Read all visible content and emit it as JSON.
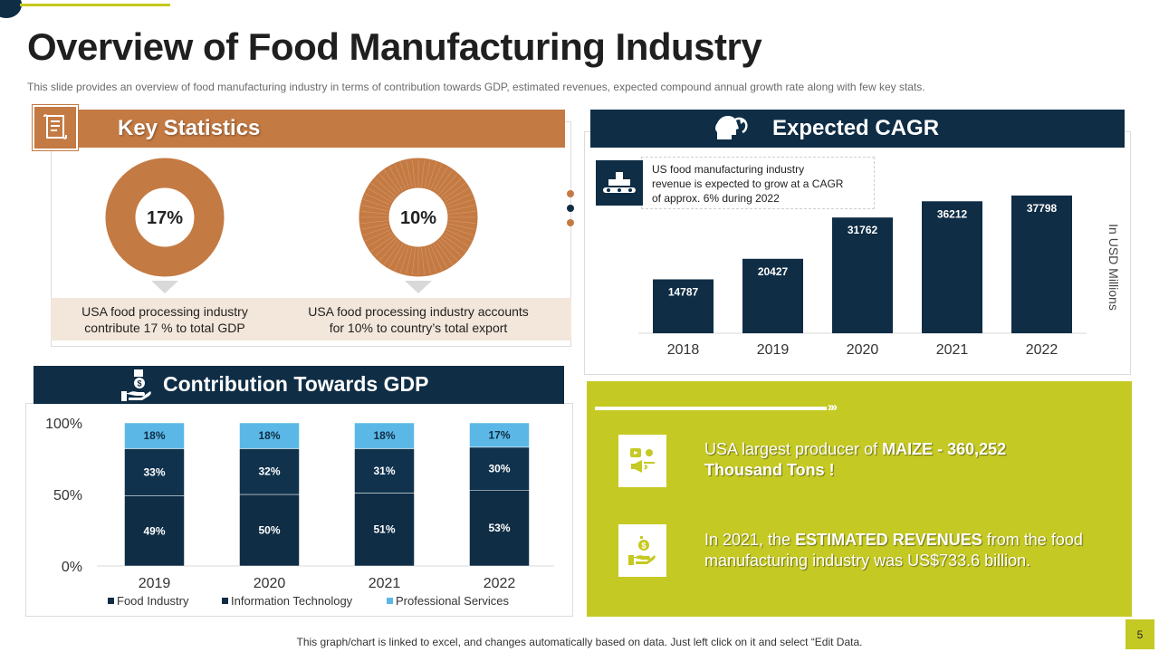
{
  "page": {
    "title": "Overview of Food Manufacturing Industry",
    "subtitle": "This slide provides  an overview  of food manufacturing  industry in terms of contribution towards GDP, estimated revenues,  expected compound  annual  growth  rate along with few key stats.",
    "footer_note": "This graph/chart is linked to excel, and changes automatically based on data. Just left click on it and select “Edit Data.",
    "page_number": "5"
  },
  "colors": {
    "navy": "#0f2d45",
    "copper": "#c47a43",
    "lime": "#c5c923",
    "sky": "#5bb8e6",
    "peach": "#f3e6da"
  },
  "key_stats": {
    "title": "Key Statistics",
    "icon": "document-icon",
    "stats": [
      {
        "value": "17%",
        "percent": 17,
        "description_line1": "USA food processing industry",
        "description_line2": "contribute 17 % to total GDP"
      },
      {
        "value": "10%",
        "percent": 10,
        "description_line1": "USA food processing industry accounts",
        "description_line2": "for 10% to country’s total export"
      }
    ]
  },
  "cagr": {
    "title": "Expected CAGR",
    "header_icon": "head-refresh-icon",
    "note_icon": "conveyor-icon",
    "note_line1": "US food manufacturing industry",
    "note_line2": "revenue  is expected to grow at a CAGR",
    "note_line3": "of approx. 6% during 2022",
    "axis_label": "In USD Millions"
  },
  "gdp": {
    "title": "Contribution Towards GDP",
    "header_icon": "money-hand-icon"
  },
  "facts": [
    {
      "icon": "media-megaphone-icon",
      "pre": "USA largest producer of ",
      "bold": "MAIZE - 360,252",
      "line2": "Thousand Tons !"
    },
    {
      "icon": "money-hand-icon",
      "pre": "In 2021, the ",
      "bold": "ESTIMATED REVENUES",
      "post": " from the food",
      "line2": "manufacturing industry was US$733.6 billion."
    }
  ],
  "chart_data": [
    {
      "type": "bar",
      "title": "Expected CAGR",
      "categories": [
        "2018",
        "2019",
        "2020",
        "2021",
        "2022"
      ],
      "values": [
        14787,
        20427,
        31762,
        36212,
        37798
      ],
      "ylabel": "In USD Millions",
      "ylim": [
        0,
        41000
      ],
      "grid": false,
      "data_labels": [
        "14787",
        "20427",
        "31762",
        "36212",
        "37798"
      ]
    },
    {
      "type": "bar",
      "stacked": true,
      "title": "Contribution Towards GDP",
      "categories": [
        "2019",
        "2020",
        "2021",
        "2022"
      ],
      "series": [
        {
          "name": "Food Industry",
          "values": [
            49,
            50,
            51,
            53
          ],
          "labels": [
            "49%",
            "50%",
            "51%",
            "53%"
          ],
          "color": "#0f2d45"
        },
        {
          "name": "Information Technology",
          "values": [
            33,
            32,
            31,
            30
          ],
          "labels": [
            "33%",
            "32%",
            "31%",
            "30%"
          ],
          "color": "#10324d"
        },
        {
          "name": "Professional Services",
          "values": [
            18,
            18,
            18,
            17
          ],
          "labels": [
            "18%",
            "18%",
            "18%",
            "17%"
          ],
          "color": "#5bb8e6"
        }
      ],
      "yticks": [
        "0%",
        "50%",
        "100%"
      ],
      "ylim": [
        0,
        100
      ],
      "legend": "bottom"
    }
  ]
}
